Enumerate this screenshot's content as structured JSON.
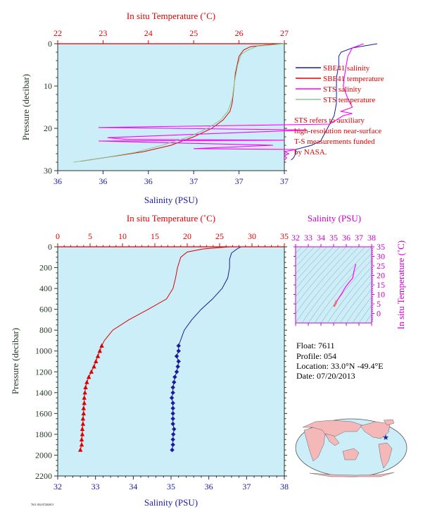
{
  "float_info": {
    "float": "Float: 7611",
    "profile": "Profile: 054",
    "location": "Location: 33.0°N -49.4°E",
    "date": "Date: 07/20/2013"
  },
  "note_lines": [
    "STS refers to auxiliary",
    "high-resolution near-surface",
    "T-S measurements funded",
    "by NASA."
  ],
  "footer_tag": "7611 054 07202013",
  "colors": {
    "salinity": "#1a1aa0",
    "temperature": "#dd0000",
    "sts_salinity": "#ff00ff",
    "sts_temperature": "#88cc88",
    "plot_bg": "#cceef8",
    "axis_dark": "#243a24",
    "land": "#f4b8b8",
    "ocean": "#cceef8"
  },
  "chart_data": [
    {
      "type": "line",
      "panel": "near-surface",
      "top_axis_title": "In situ Temperature (˚C)",
      "bottom_axis_title": "Salinity (PSU)",
      "left_axis_title": "Pressure (decibar)",
      "temp_range": [
        22,
        27
      ],
      "sal_range": [
        36,
        37
      ],
      "pres_range": [
        0,
        30
      ],
      "y_inverted": true,
      "temp_ticks": [
        "22",
        "23",
        "24",
        "25",
        "26",
        "27"
      ],
      "sal_ticks": [
        "36",
        "36",
        "36",
        "37",
        "37",
        "37"
      ],
      "pres_ticks": [
        "0",
        "10",
        "20",
        "30"
      ],
      "legend": [
        {
          "label": "SBE41 salinity",
          "color": "#1a1aa0"
        },
        {
          "label": "SBE41 temperature",
          "color": "#dd0000"
        },
        {
          "label": "STS salinity",
          "color": "#ff00ff"
        },
        {
          "label": "STS temperature",
          "color": "#88cc88"
        }
      ],
      "legend_position": "right",
      "series": [
        {
          "axis": "sal",
          "color": "#1a1aa0",
          "style": "thin",
          "points": [
            [
              37.41,
              0
            ],
            [
              37.3,
              1
            ],
            [
              37.25,
              2
            ],
            [
              37.24,
              3
            ],
            [
              37.24,
              5
            ],
            [
              37.23,
              8
            ],
            [
              37.23,
              11
            ],
            [
              37.23,
              14
            ],
            [
              37.22,
              17
            ],
            [
              37.2,
              19
            ],
            [
              37.18,
              21
            ],
            [
              37.16,
              23
            ],
            [
              37.12,
              24
            ],
            [
              37.05,
              25
            ],
            [
              37.05,
              26
            ],
            [
              37.04,
              27
            ],
            [
              37.03,
              27.5
            ]
          ]
        },
        {
          "axis": "temp",
          "color": "#dd0000",
          "style": "thin",
          "points": [
            [
              26.9,
              0
            ],
            [
              26.25,
              0.7
            ],
            [
              26.1,
              1.5
            ],
            [
              26.0,
              3
            ],
            [
              25.92,
              7
            ],
            [
              25.88,
              11
            ],
            [
              25.85,
              14
            ],
            [
              25.8,
              16
            ],
            [
              25.65,
              18
            ],
            [
              25.4,
              20
            ],
            [
              25.0,
              22
            ],
            [
              24.5,
              24
            ],
            [
              23.9,
              25.5
            ],
            [
              23.3,
              26.5
            ],
            [
              22.8,
              27.3
            ],
            [
              22.5,
              27.8
            ]
          ]
        },
        {
          "axis": "sal",
          "color": "#ff00ff",
          "style": "noisy",
          "points": [
            [
              37.35,
              0
            ],
            [
              37.3,
              1
            ],
            [
              37.28,
              3
            ],
            [
              37.27,
              6
            ],
            [
              37.26,
              10
            ],
            [
              37.28,
              13
            ],
            [
              37.3,
              15
            ],
            [
              37.25,
              16
            ],
            [
              37.3,
              16.5
            ],
            [
              37.26,
              17
            ],
            [
              37.2,
              19
            ],
            [
              36.18,
              19.8
            ],
            [
              36.5,
              20
            ],
            [
              37.1,
              20.4
            ],
            [
              36.22,
              22.2
            ],
            [
              36.3,
              22.6
            ],
            [
              37.0,
              22.8
            ],
            [
              36.18,
              23
            ],
            [
              36.4,
              23.3
            ],
            [
              36.95,
              24
            ],
            [
              36.6,
              24.8
            ],
            [
              37.05,
              25
            ],
            [
              37.0,
              25.5
            ],
            [
              37.02,
              26
            ],
            [
              37.0,
              26.5
            ],
            [
              37.01,
              27
            ],
            [
              37.0,
              27.5
            ]
          ]
        },
        {
          "axis": "temp",
          "color": "#88cc88",
          "style": "thin",
          "points": [
            [
              27.0,
              0
            ],
            [
              26.4,
              0.6
            ],
            [
              26.2,
              1.5
            ],
            [
              26.05,
              2.5
            ],
            [
              25.97,
              5
            ],
            [
              25.9,
              9
            ],
            [
              25.85,
              13
            ],
            [
              25.75,
              16
            ],
            [
              25.6,
              18
            ],
            [
              25.3,
              20
            ],
            [
              24.9,
              22
            ],
            [
              24.3,
              24
            ],
            [
              23.7,
              25.7
            ],
            [
              23.1,
              26.8
            ],
            [
              22.6,
              27.6
            ],
            [
              22.35,
              28
            ]
          ]
        }
      ]
    },
    {
      "type": "line",
      "panel": "full-depth",
      "top_axis_title": "In situ Temperature (˚C)",
      "bottom_axis_title": "Salinity (PSU)",
      "left_axis_title": "Pressure (decibar)",
      "temp_range": [
        0,
        35
      ],
      "sal_range": [
        32,
        38
      ],
      "pres_range": [
        0,
        2200
      ],
      "y_inverted": true,
      "temp_ticks": [
        "0",
        "5",
        "10",
        "15",
        "20",
        "25",
        "30",
        "35"
      ],
      "sal_ticks": [
        "32",
        "33",
        "34",
        "35",
        "36",
        "37",
        "38"
      ],
      "pres_ticks": [
        "0",
        "200",
        "400",
        "600",
        "800",
        "1000",
        "1200",
        "1400",
        "1600",
        "1800",
        "2000",
        "2200"
      ],
      "series": [
        {
          "name": "salinity",
          "axis": "sal",
          "color": "#1a1aa0",
          "marker": "diamond",
          "marker_from": 950,
          "points": [
            [
              36.85,
              0
            ],
            [
              36.75,
              20
            ],
            [
              36.6,
              60
            ],
            [
              36.55,
              120
            ],
            [
              36.55,
              200
            ],
            [
              36.5,
              300
            ],
            [
              36.35,
              400
            ],
            [
              36.1,
              500
            ],
            [
              35.8,
              600
            ],
            [
              35.55,
              700
            ],
            [
              35.35,
              800
            ],
            [
              35.25,
              900
            ],
            [
              35.2,
              950
            ],
            [
              35.2,
              1000
            ],
            [
              35.15,
              1050
            ],
            [
              35.2,
              1100
            ],
            [
              35.18,
              1150
            ],
            [
              35.15,
              1200
            ],
            [
              35.1,
              1250
            ],
            [
              35.08,
              1300
            ],
            [
              35.05,
              1350
            ],
            [
              35.05,
              1400
            ],
            [
              35.02,
              1450
            ],
            [
              35.05,
              1500
            ],
            [
              35.05,
              1550
            ],
            [
              35.05,
              1600
            ],
            [
              35.05,
              1650
            ],
            [
              35.05,
              1700
            ],
            [
              35.08,
              1750
            ],
            [
              35.06,
              1800
            ],
            [
              35.05,
              1850
            ],
            [
              35.05,
              1900
            ],
            [
              35.03,
              1950
            ]
          ]
        },
        {
          "name": "temperature",
          "axis": "temp",
          "color": "#dd0000",
          "marker": "triangle",
          "marker_from": 950,
          "points": [
            [
              26.5,
              0
            ],
            [
              22.5,
              20
            ],
            [
              20.0,
              50
            ],
            [
              19.0,
              100
            ],
            [
              18.5,
              200
            ],
            [
              18.2,
              300
            ],
            [
              17.8,
              400
            ],
            [
              16.8,
              500
            ],
            [
              14.0,
              600
            ],
            [
              11.0,
              700
            ],
            [
              8.5,
              800
            ],
            [
              7.2,
              900
            ],
            [
              6.8,
              950
            ],
            [
              6.5,
              1000
            ],
            [
              6.2,
              1050
            ],
            [
              5.9,
              1100
            ],
            [
              5.6,
              1150
            ],
            [
              5.2,
              1200
            ],
            [
              4.8,
              1250
            ],
            [
              4.5,
              1300
            ],
            [
              4.3,
              1350
            ],
            [
              4.2,
              1400
            ],
            [
              4.1,
              1450
            ],
            [
              4.1,
              1500
            ],
            [
              4.0,
              1550
            ],
            [
              4.0,
              1600
            ],
            [
              3.9,
              1650
            ],
            [
              3.9,
              1700
            ],
            [
              3.8,
              1750
            ],
            [
              3.8,
              1800
            ],
            [
              3.7,
              1850
            ],
            [
              3.7,
              1900
            ],
            [
              3.5,
              1950
            ]
          ]
        }
      ]
    },
    {
      "type": "scatter",
      "panel": "T-S diagram",
      "top_axis_title": "Salinity (PSU)",
      "right_axis_title": "In situ Temperature (˚C)",
      "sal_range": [
        32,
        38
      ],
      "temp_range": [
        -5,
        35
      ],
      "sal_ticks": [
        "32",
        "33",
        "34",
        "35",
        "36",
        "37",
        "38"
      ],
      "temp_ticks": [
        "0",
        "5",
        "10",
        "15",
        "20",
        "25",
        "30",
        "35"
      ],
      "series": [
        {
          "name": "profile",
          "color": "#ff00ff",
          "points": [
            [
              35.05,
              3.5
            ],
            [
              35.1,
              4.5
            ],
            [
              35.2,
              5.5
            ],
            [
              35.3,
              7
            ],
            [
              35.6,
              10
            ],
            [
              35.95,
              14
            ],
            [
              36.3,
              17
            ],
            [
              36.5,
              18.5
            ],
            [
              36.55,
              20
            ],
            [
              36.6,
              22
            ],
            [
              36.75,
              26
            ]
          ]
        },
        {
          "name": "deep",
          "color": "#f07070",
          "points": [
            [
              35.03,
              3.6
            ],
            [
              35.06,
              4.1
            ],
            [
              35.1,
              4.6
            ],
            [
              35.15,
              5.2
            ],
            [
              35.2,
              6.0
            ],
            [
              35.25,
              6.8
            ]
          ]
        }
      ]
    }
  ]
}
